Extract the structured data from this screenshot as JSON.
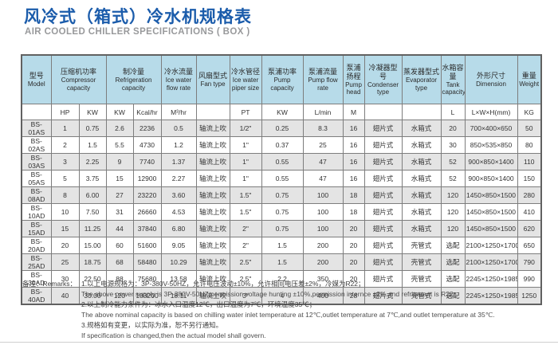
{
  "header": {
    "title_zh": "风冷式（箱式）冷水机规格表",
    "title_en": "AIR COOLED CHILLER SPECIFICATIONS ( BOX )"
  },
  "colors": {
    "title_blue": "#1b5cab",
    "subtitle_gray": "#98999b",
    "table_header_bg": "#b7dbe9",
    "row_stripe_bg": "#e4e4e4",
    "border_gray": "#7d7d7d"
  },
  "table": {
    "header_groups": [
      {
        "key": "model",
        "zh": "型号",
        "en": "Model",
        "colspan": 1
      },
      {
        "key": "compressor",
        "zh": "压缩机功率",
        "en": "Compressor capacity",
        "colspan": 2
      },
      {
        "key": "refrigeration",
        "zh": "制冷量",
        "en": "Refrigeration capacity",
        "colspan": 2
      },
      {
        "key": "ice-water-flow",
        "zh": "冷水流量",
        "en": "Ice water flow rate",
        "colspan": 1
      },
      {
        "key": "fan-type",
        "zh": "风扇型式",
        "en": "Fan type",
        "colspan": 1
      },
      {
        "key": "pipe-size",
        "zh": "冷水管径",
        "en": "Ice water piper size",
        "colspan": 1
      },
      {
        "key": "pump-capacity",
        "zh": "泵浦功率",
        "en": "Pump capacity",
        "colspan": 1
      },
      {
        "key": "pump-flow",
        "zh": "泵浦流量",
        "en": "Pump flow rate",
        "colspan": 1
      },
      {
        "key": "pump-head",
        "zh": "泵浦扬程",
        "en": "Pump head",
        "colspan": 1
      },
      {
        "key": "condenser",
        "zh": "冷凝器型号",
        "en": "Condenser type",
        "colspan": 1
      },
      {
        "key": "evaporator",
        "zh": "蒸发器型式",
        "en": "Evaporator type",
        "colspan": 1
      },
      {
        "key": "tank",
        "zh": "水箱容量",
        "en": "Tank capacity",
        "colspan": 1
      },
      {
        "key": "dimension",
        "zh": "外形尺寸",
        "en": "Dimension",
        "colspan": 1
      },
      {
        "key": "weight",
        "zh": "重量",
        "en": "Weight",
        "colspan": 1
      }
    ],
    "units": [
      "",
      "HP",
      "KW",
      "KW",
      "Kcal/hr",
      "M³/hr",
      "",
      "PT",
      "KW",
      "L/min",
      "M",
      "",
      "",
      "L",
      "L×W×H(mm)",
      "KG"
    ],
    "rows": [
      [
        "BS-01AS",
        "1",
        "0.75",
        "2.6",
        "2236",
        "0.5",
        "轴流上吹",
        "1/2\"",
        "0.25",
        "8.3",
        "16",
        "翅片式",
        "水箱式",
        "20",
        "700×400×650",
        "50"
      ],
      [
        "BS-02AS",
        "2",
        "1.5",
        "5.5",
        "4730",
        "1.2",
        "轴流上吹",
        "1\"",
        "0.37",
        "25",
        "16",
        "翅片式",
        "水箱式",
        "30",
        "850×535×850",
        "80"
      ],
      [
        "BS-03AS",
        "3",
        "2.25",
        "9",
        "7740",
        "1.37",
        "轴流上吹",
        "1\"",
        "0.55",
        "47",
        "16",
        "翅片式",
        "水箱式",
        "52",
        "900×850×1400",
        "110"
      ],
      [
        "BS-05AS",
        "5",
        "3.75",
        "15",
        "12900",
        "2.27",
        "轴流上吹",
        "1\"",
        "0.55",
        "47",
        "16",
        "翅片式",
        "水箱式",
        "52",
        "900×850×1400",
        "150"
      ],
      [
        "BS-08AD",
        "8",
        "6.00",
        "27",
        "23220",
        "3.60",
        "轴流上吹",
        "1.5\"",
        "0.75",
        "100",
        "18",
        "翅片式",
        "水箱式",
        "120",
        "1450×850×1500",
        "280"
      ],
      [
        "BS-10AD",
        "10",
        "7.50",
        "31",
        "26660",
        "4.53",
        "轴流上吹",
        "1.5\"",
        "0.75",
        "100",
        "18",
        "翅片式",
        "水箱式",
        "120",
        "1450×850×1500",
        "410"
      ],
      [
        "BS-15AD",
        "15",
        "11.25",
        "44",
        "37840",
        "6.80",
        "轴流上吹",
        "2\"",
        "0.75",
        "100",
        "20",
        "翅片式",
        "水箱式",
        "120",
        "1450×850×1500",
        "620"
      ],
      [
        "BS-20AD",
        "20",
        "15.00",
        "60",
        "51600",
        "9.05",
        "轴流上吹",
        "2\"",
        "1.5",
        "200",
        "20",
        "翅片式",
        "壳管式",
        "选配",
        "2100×1250×1700",
        "650"
      ],
      [
        "BS-25AD",
        "25",
        "18.75",
        "68",
        "58480",
        "10.29",
        "轴流上吹",
        "2.5\"",
        "1.5",
        "200",
        "20",
        "翅片式",
        "壳管式",
        "选配",
        "2100×1250×1700",
        "790"
      ],
      [
        "BS-30AD",
        "30",
        "22.50",
        "88",
        "75680",
        "13.58",
        "轴流上吹",
        "2.5\"",
        "2.2",
        "350",
        "20",
        "翅片式",
        "壳管式",
        "选配",
        "2245×1250×1985",
        "990"
      ],
      [
        "BS-40AD",
        "40",
        "30.00",
        "120",
        "103200",
        "18.11",
        "轴流上吹",
        "3\"",
        "4",
        "400",
        "28",
        "翅片式",
        "壳管式",
        "选配",
        "2245×1250×1985",
        "1250"
      ]
    ]
  },
  "remarks": {
    "label_zh": "备注：",
    "label_en": "Remarks：",
    "lines": [
      {
        "zh": "1.以上电源规格为：3P-380V-50HZ，允许电压波动±10%，允许相间电压差±2%，冷媒为R22；",
        "en": "The above power supply is 3P-380V-50HZ,permission voltage hunting ±10%,permission internce ±2%,and refrigerant is R22."
      },
      {
        "zh": "2.以上制冷能力条件为：冰水入口温度12℃，出口温度为7℃，环境温度35℃；",
        "en": "The above nominal capacity is based on chilling water inlet temperature at 12℃,outlet temperature at 7℃,and outlet temperature at 35℃."
      },
      {
        "zh": "3.规格如有变更，以实际为准，恕不另行通知。",
        "en": "If specification is changed,then the actual model shall govern."
      }
    ]
  }
}
